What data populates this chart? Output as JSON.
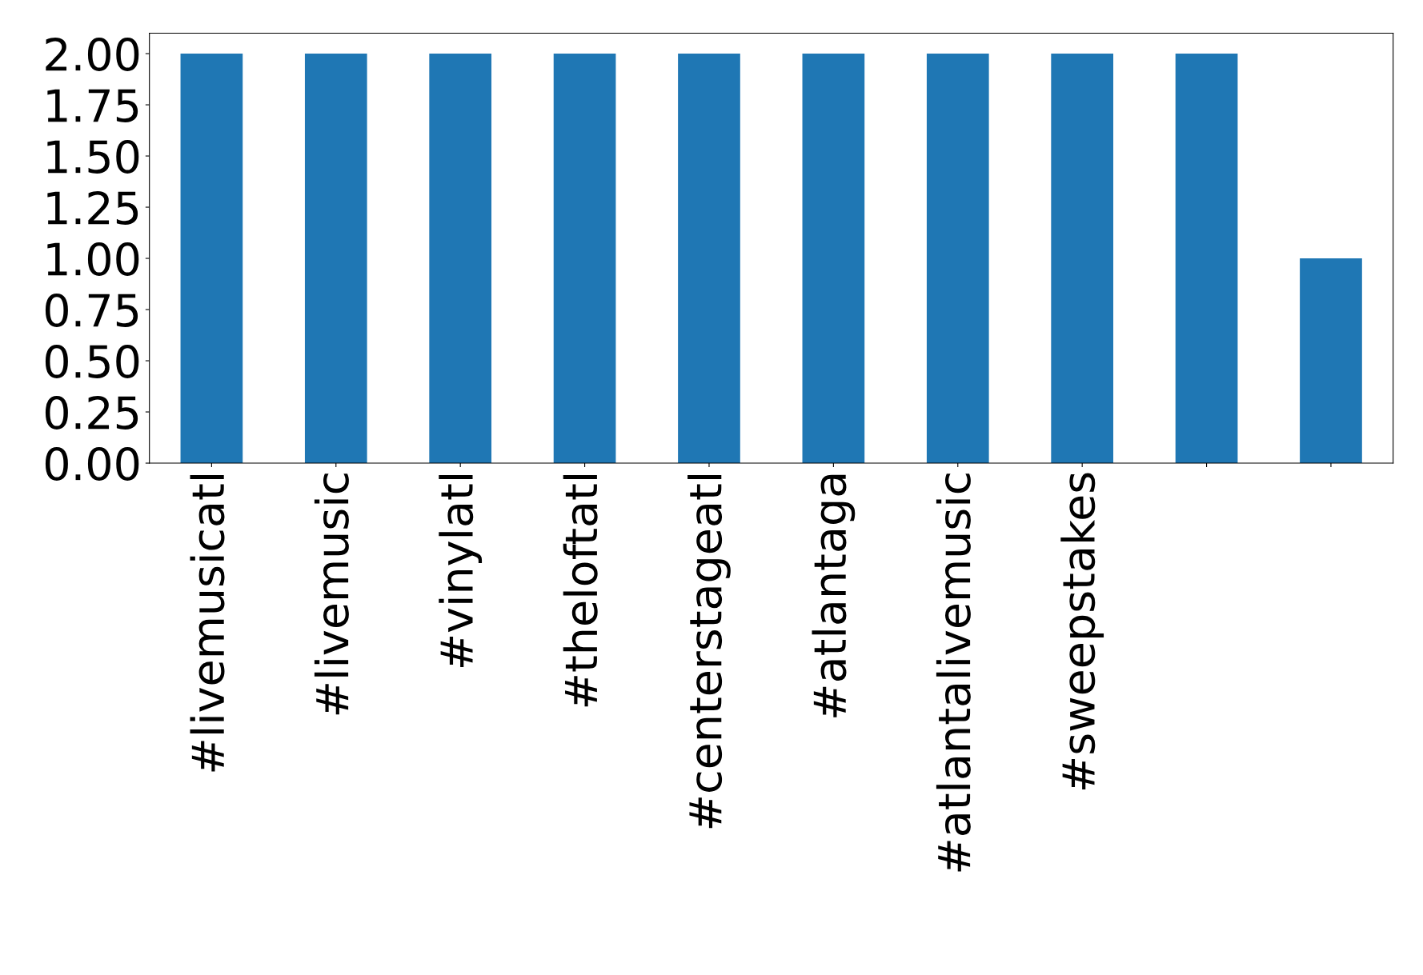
{
  "chart_data": {
    "type": "bar",
    "categories": [
      "#livemusicatl",
      "#livemusic",
      "#vinylatl",
      "#theloftatl",
      "#centerstageatl",
      "#atlantaga",
      "#atlantalivemusic",
      "#sweepstakes",
      null,
      null
    ],
    "values": [
      2,
      2,
      2,
      2,
      2,
      2,
      2,
      2,
      2,
      1
    ],
    "color": "#1f77b4",
    "ylim": [
      0,
      2.1
    ],
    "yticks": [
      {
        "value": 0,
        "label": "0.00"
      },
      {
        "value": 0.25,
        "label": "0.25"
      },
      {
        "value": 0.5,
        "label": "0.50"
      },
      {
        "value": 0.75,
        "label": "0.75"
      },
      {
        "value": 1,
        "label": "1.00"
      },
      {
        "value": 1.25,
        "label": "1.25"
      },
      {
        "value": 1.5,
        "label": "1.50"
      },
      {
        "value": 1.75,
        "label": "1.75"
      },
      {
        "value": 2,
        "label": "2.00"
      }
    ],
    "grid": false,
    "legend": false
  }
}
